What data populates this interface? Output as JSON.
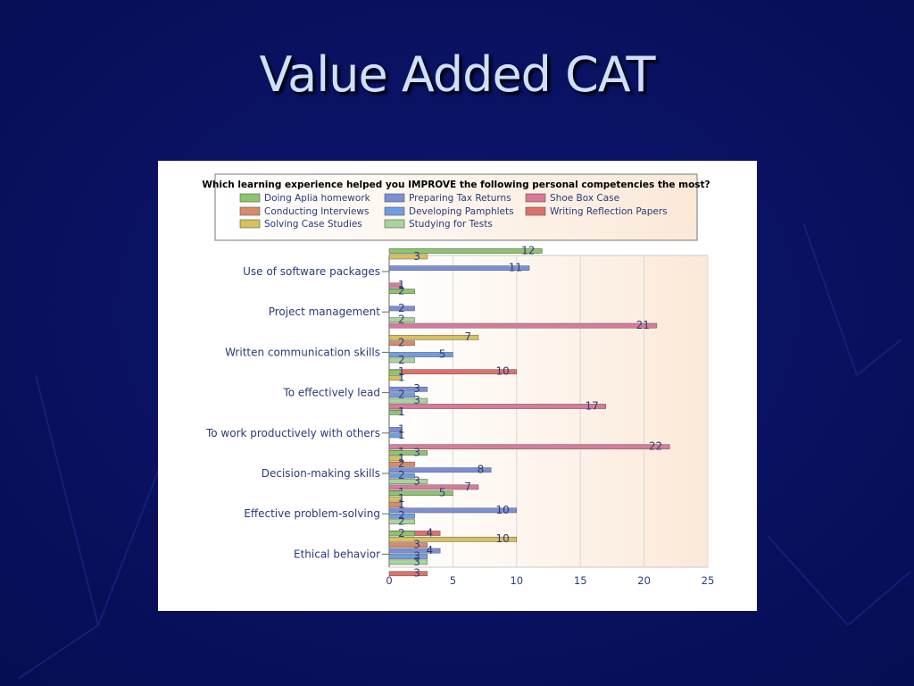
{
  "slide": {
    "title": "Value Added CAT",
    "background_color": "#0a1160"
  },
  "chart_data": {
    "type": "bar",
    "orientation": "horizontal",
    "title": "Which learning experience helped you IMPROVE the following personal competencies the most?",
    "xlabel": "",
    "ylabel": "",
    "xlim": [
      0,
      25
    ],
    "xticks": [
      0,
      5,
      10,
      15,
      20,
      25
    ],
    "grid": true,
    "legend_position": "top",
    "categories": [
      "Use of software packages",
      "Project management",
      "Written communication skills",
      "To effectively lead",
      "To work productively with others",
      "Decision-making skills",
      "Effective problem-solving",
      "Ethical behavior"
    ],
    "series": [
      {
        "name": "Doing Aplia  homework",
        "color": "#8cc56a",
        "values": [
          12,
          2,
          null,
          1,
          1,
          3,
          5,
          2
        ]
      },
      {
        "name": "Solving Case Studies",
        "color": "#d6c15a",
        "values": [
          3,
          null,
          7,
          1,
          null,
          1,
          1,
          10
        ]
      },
      {
        "name": "Conducting Interviews",
        "color": "#d98a6a",
        "values": [
          null,
          null,
          2,
          null,
          null,
          2,
          1,
          3
        ]
      },
      {
        "name": "Preparing Tax Returns",
        "color": "#7b8fd6",
        "values": [
          11,
          2,
          null,
          3,
          1,
          8,
          10,
          4
        ]
      },
      {
        "name": "Developing Pamphlets",
        "color": "#6f9ee0",
        "values": [
          null,
          null,
          5,
          2,
          1,
          2,
          2,
          3
        ]
      },
      {
        "name": "Studying for Tests",
        "color": "#a9d49a",
        "values": [
          null,
          2,
          2,
          3,
          null,
          3,
          2,
          3
        ]
      },
      {
        "name": "Shoe Box Case",
        "color": "#d97a9a",
        "values": [
          1,
          21,
          null,
          17,
          22,
          7,
          null,
          null
        ]
      },
      {
        "name": "Writing Reflection Papers",
        "color": "#e0706a",
        "values": [
          1,
          null,
          10,
          1,
          1,
          1,
          4,
          3
        ]
      }
    ],
    "legend_order": [
      "Doing Aplia  homework",
      "Preparing Tax Returns",
      "Shoe Box Case",
      "Conducting Interviews",
      "Developing Pamphlets",
      "Writing Reflection Papers",
      "Solving Case Studies",
      "Studying for Tests"
    ]
  }
}
